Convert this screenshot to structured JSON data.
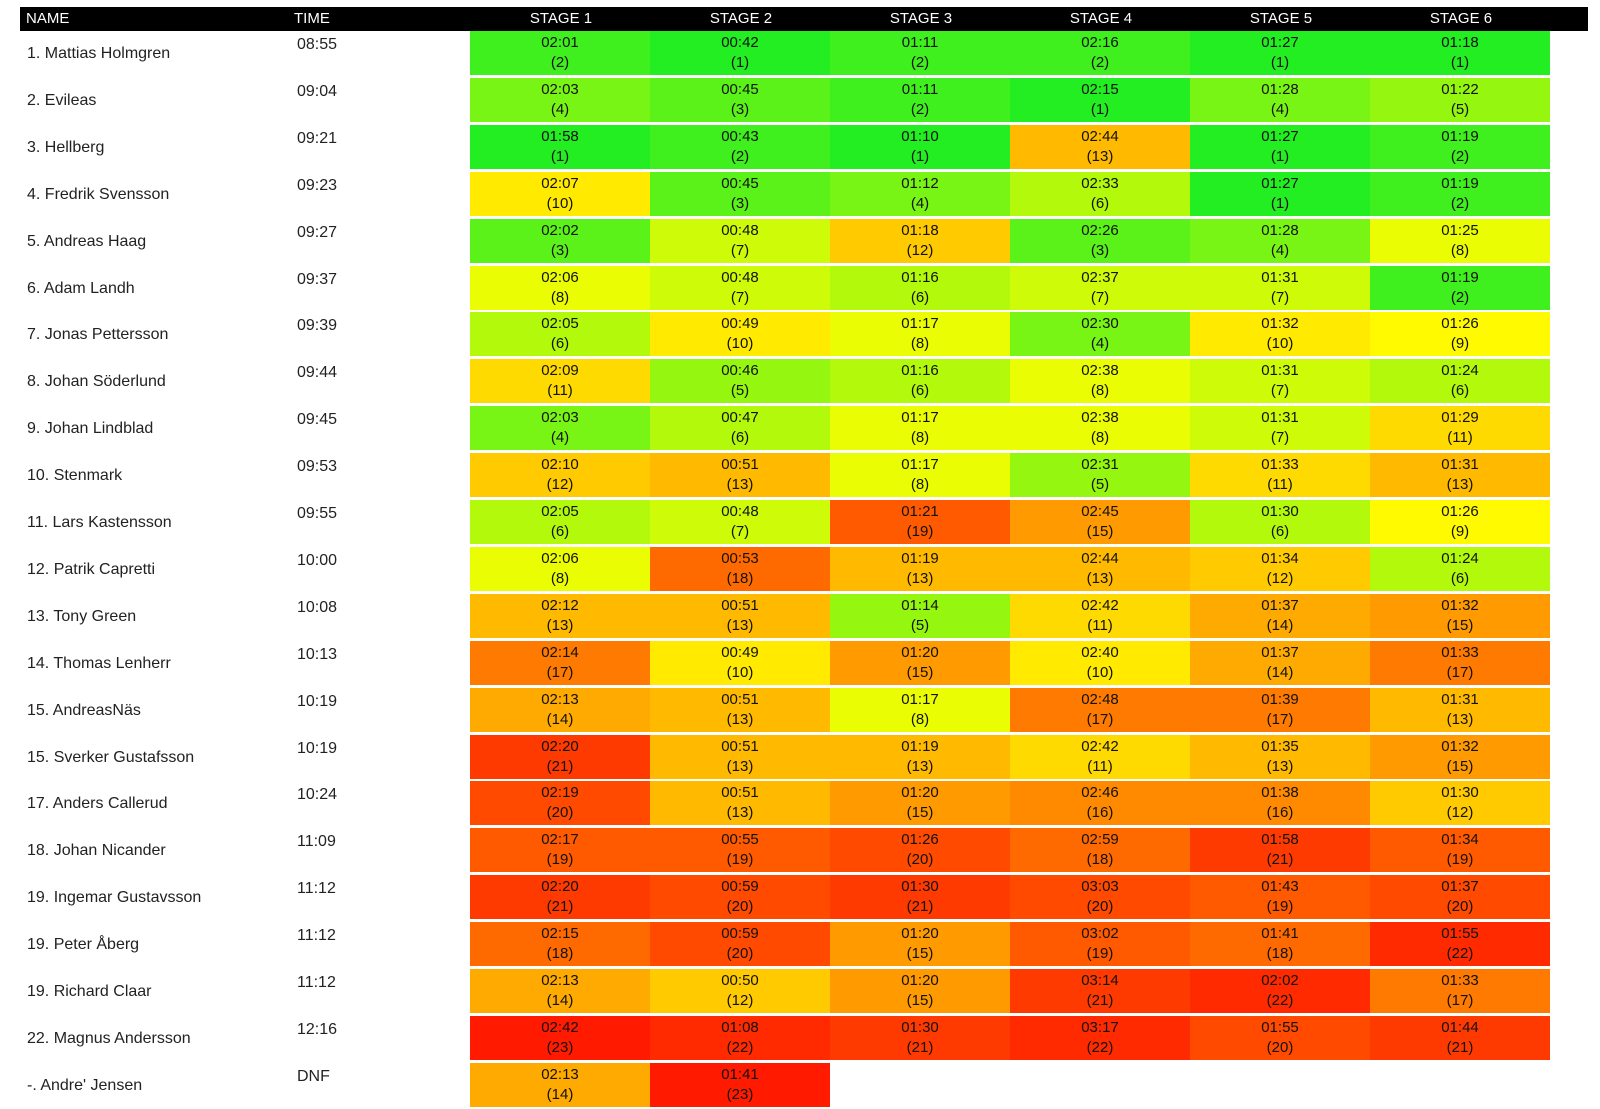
{
  "header": {
    "name_label": "NAME",
    "time_label": "TIME",
    "stages": [
      "STAGE 1",
      "STAGE 2",
      "STAGE 3",
      "STAGE 4",
      "STAGE 5",
      "STAGE 6"
    ]
  },
  "chart_data": {
    "type": "table",
    "color_scale": {
      "best": "#22ee22",
      "mid": "#ffff00",
      "worst": "#ff1a00"
    },
    "rows": [
      {
        "name": "1. Mattias Holmgren",
        "time": "08:55",
        "stages": [
          {
            "t": "02:01",
            "r": "(2)"
          },
          {
            "t": "00:42",
            "r": "(1)"
          },
          {
            "t": "01:11",
            "r": "(2)"
          },
          {
            "t": "02:16",
            "r": "(2)"
          },
          {
            "t": "01:27",
            "r": "(1)"
          },
          {
            "t": "01:18",
            "r": "(1)"
          }
        ]
      },
      {
        "name": "2. Evileas",
        "time": "09:04",
        "stages": [
          {
            "t": "02:03",
            "r": "(4)"
          },
          {
            "t": "00:45",
            "r": "(3)"
          },
          {
            "t": "01:11",
            "r": "(2)"
          },
          {
            "t": "02:15",
            "r": "(1)"
          },
          {
            "t": "01:28",
            "r": "(4)"
          },
          {
            "t": "01:22",
            "r": "(5)"
          }
        ]
      },
      {
        "name": "3. Hellberg",
        "time": "09:21",
        "stages": [
          {
            "t": "01:58",
            "r": "(1)"
          },
          {
            "t": "00:43",
            "r": "(2)"
          },
          {
            "t": "01:10",
            "r": "(1)"
          },
          {
            "t": "02:44",
            "r": "(13)"
          },
          {
            "t": "01:27",
            "r": "(1)"
          },
          {
            "t": "01:19",
            "r": "(2)"
          }
        ]
      },
      {
        "name": "4. Fredrik Svensson",
        "time": "09:23",
        "stages": [
          {
            "t": "02:07",
            "r": "(10)"
          },
          {
            "t": "00:45",
            "r": "(3)"
          },
          {
            "t": "01:12",
            "r": "(4)"
          },
          {
            "t": "02:33",
            "r": "(6)"
          },
          {
            "t": "01:27",
            "r": "(1)"
          },
          {
            "t": "01:19",
            "r": "(2)"
          }
        ]
      },
      {
        "name": "5. Andreas Haag",
        "time": "09:27",
        "stages": [
          {
            "t": "02:02",
            "r": "(3)"
          },
          {
            "t": "00:48",
            "r": "(7)"
          },
          {
            "t": "01:18",
            "r": "(12)"
          },
          {
            "t": "02:26",
            "r": "(3)"
          },
          {
            "t": "01:28",
            "r": "(4)"
          },
          {
            "t": "01:25",
            "r": "(8)"
          }
        ]
      },
      {
        "name": "6. Adam Landh",
        "time": "09:37",
        "stages": [
          {
            "t": "02:06",
            "r": "(8)"
          },
          {
            "t": "00:48",
            "r": "(7)"
          },
          {
            "t": "01:16",
            "r": "(6)"
          },
          {
            "t": "02:37",
            "r": "(7)"
          },
          {
            "t": "01:31",
            "r": "(7)"
          },
          {
            "t": "01:19",
            "r": "(2)"
          }
        ]
      },
      {
        "name": "7. Jonas Pettersson",
        "time": "09:39",
        "stages": [
          {
            "t": "02:05",
            "r": "(6)"
          },
          {
            "t": "00:49",
            "r": "(10)"
          },
          {
            "t": "01:17",
            "r": "(8)"
          },
          {
            "t": "02:30",
            "r": "(4)"
          },
          {
            "t": "01:32",
            "r": "(10)"
          },
          {
            "t": "01:26",
            "r": "(9)"
          }
        ]
      },
      {
        "name": "8. Johan Söderlund",
        "time": "09:44",
        "stages": [
          {
            "t": "02:09",
            "r": "(11)"
          },
          {
            "t": "00:46",
            "r": "(5)"
          },
          {
            "t": "01:16",
            "r": "(6)"
          },
          {
            "t": "02:38",
            "r": "(8)"
          },
          {
            "t": "01:31",
            "r": "(7)"
          },
          {
            "t": "01:24",
            "r": "(6)"
          }
        ]
      },
      {
        "name": "9. Johan Lindblad",
        "time": "09:45",
        "stages": [
          {
            "t": "02:03",
            "r": "(4)"
          },
          {
            "t": "00:47",
            "r": "(6)"
          },
          {
            "t": "01:17",
            "r": "(8)"
          },
          {
            "t": "02:38",
            "r": "(8)"
          },
          {
            "t": "01:31",
            "r": "(7)"
          },
          {
            "t": "01:29",
            "r": "(11)"
          }
        ]
      },
      {
        "name": "10. Stenmark",
        "time": "09:53",
        "stages": [
          {
            "t": "02:10",
            "r": "(12)"
          },
          {
            "t": "00:51",
            "r": "(13)"
          },
          {
            "t": "01:17",
            "r": "(8)"
          },
          {
            "t": "02:31",
            "r": "(5)"
          },
          {
            "t": "01:33",
            "r": "(11)"
          },
          {
            "t": "01:31",
            "r": "(13)"
          }
        ]
      },
      {
        "name": "11. Lars Kastensson",
        "time": "09:55",
        "stages": [
          {
            "t": "02:05",
            "r": "(6)"
          },
          {
            "t": "00:48",
            "r": "(7)"
          },
          {
            "t": "01:21",
            "r": "(19)"
          },
          {
            "t": "02:45",
            "r": "(15)"
          },
          {
            "t": "01:30",
            "r": "(6)"
          },
          {
            "t": "01:26",
            "r": "(9)"
          }
        ]
      },
      {
        "name": "12. Patrik Capretti",
        "time": "10:00",
        "stages": [
          {
            "t": "02:06",
            "r": "(8)"
          },
          {
            "t": "00:53",
            "r": "(18)"
          },
          {
            "t": "01:19",
            "r": "(13)"
          },
          {
            "t": "02:44",
            "r": "(13)"
          },
          {
            "t": "01:34",
            "r": "(12)"
          },
          {
            "t": "01:24",
            "r": "(6)"
          }
        ]
      },
      {
        "name": "13. Tony Green",
        "time": "10:08",
        "stages": [
          {
            "t": "02:12",
            "r": "(13)"
          },
          {
            "t": "00:51",
            "r": "(13)"
          },
          {
            "t": "01:14",
            "r": "(5)"
          },
          {
            "t": "02:42",
            "r": "(11)"
          },
          {
            "t": "01:37",
            "r": "(14)"
          },
          {
            "t": "01:32",
            "r": "(15)"
          }
        ]
      },
      {
        "name": "14. Thomas Lenherr",
        "time": "10:13",
        "stages": [
          {
            "t": "02:14",
            "r": "(17)"
          },
          {
            "t": "00:49",
            "r": "(10)"
          },
          {
            "t": "01:20",
            "r": "(15)"
          },
          {
            "t": "02:40",
            "r": "(10)"
          },
          {
            "t": "01:37",
            "r": "(14)"
          },
          {
            "t": "01:33",
            "r": "(17)"
          }
        ]
      },
      {
        "name": "15. AndreasNäs",
        "time": "10:19",
        "stages": [
          {
            "t": "02:13",
            "r": "(14)"
          },
          {
            "t": "00:51",
            "r": "(13)"
          },
          {
            "t": "01:17",
            "r": "(8)"
          },
          {
            "t": "02:48",
            "r": "(17)"
          },
          {
            "t": "01:39",
            "r": "(17)"
          },
          {
            "t": "01:31",
            "r": "(13)"
          }
        ]
      },
      {
        "name": "15. Sverker Gustafsson",
        "time": "10:19",
        "stages": [
          {
            "t": "02:20",
            "r": "(21)"
          },
          {
            "t": "00:51",
            "r": "(13)"
          },
          {
            "t": "01:19",
            "r": "(13)"
          },
          {
            "t": "02:42",
            "r": "(11)"
          },
          {
            "t": "01:35",
            "r": "(13)"
          },
          {
            "t": "01:32",
            "r": "(15)"
          }
        ]
      },
      {
        "name": "17. Anders Callerud",
        "time": "10:24",
        "stages": [
          {
            "t": "02:19",
            "r": "(20)"
          },
          {
            "t": "00:51",
            "r": "(13)"
          },
          {
            "t": "01:20",
            "r": "(15)"
          },
          {
            "t": "02:46",
            "r": "(16)"
          },
          {
            "t": "01:38",
            "r": "(16)"
          },
          {
            "t": "01:30",
            "r": "(12)"
          }
        ]
      },
      {
        "name": "18. Johan Nicander",
        "time": "11:09",
        "stages": [
          {
            "t": "02:17",
            "r": "(19)"
          },
          {
            "t": "00:55",
            "r": "(19)"
          },
          {
            "t": "01:26",
            "r": "(20)"
          },
          {
            "t": "02:59",
            "r": "(18)"
          },
          {
            "t": "01:58",
            "r": "(21)"
          },
          {
            "t": "01:34",
            "r": "(19)"
          }
        ]
      },
      {
        "name": "19. Ingemar Gustavsson",
        "time": "11:12",
        "stages": [
          {
            "t": "02:20",
            "r": "(21)"
          },
          {
            "t": "00:59",
            "r": "(20)"
          },
          {
            "t": "01:30",
            "r": "(21)"
          },
          {
            "t": "03:03",
            "r": "(20)"
          },
          {
            "t": "01:43",
            "r": "(19)"
          },
          {
            "t": "01:37",
            "r": "(20)"
          }
        ]
      },
      {
        "name": "19. Peter Åberg",
        "time": "11:12",
        "stages": [
          {
            "t": "02:15",
            "r": "(18)"
          },
          {
            "t": "00:59",
            "r": "(20)"
          },
          {
            "t": "01:20",
            "r": "(15)"
          },
          {
            "t": "03:02",
            "r": "(19)"
          },
          {
            "t": "01:41",
            "r": "(18)"
          },
          {
            "t": "01:55",
            "r": "(22)"
          }
        ]
      },
      {
        "name": "19. Richard Claar",
        "time": "11:12",
        "stages": [
          {
            "t": "02:13",
            "r": "(14)"
          },
          {
            "t": "00:50",
            "r": "(12)"
          },
          {
            "t": "01:20",
            "r": "(15)"
          },
          {
            "t": "03:14",
            "r": "(21)"
          },
          {
            "t": "02:02",
            "r": "(22)"
          },
          {
            "t": "01:33",
            "r": "(17)"
          }
        ]
      },
      {
        "name": "22. Magnus Andersson",
        "time": "12:16",
        "stages": [
          {
            "t": "02:42",
            "r": "(23)"
          },
          {
            "t": "01:08",
            "r": "(22)"
          },
          {
            "t": "01:30",
            "r": "(21)"
          },
          {
            "t": "03:17",
            "r": "(22)"
          },
          {
            "t": "01:55",
            "r": "(20)"
          },
          {
            "t": "01:44",
            "r": "(21)"
          }
        ]
      },
      {
        "name": "-. Andre' Jensen",
        "time": "DNF",
        "stages": [
          {
            "t": "02:13",
            "r": "(14)"
          },
          {
            "t": "01:41",
            "r": "(23)"
          }
        ]
      }
    ]
  }
}
